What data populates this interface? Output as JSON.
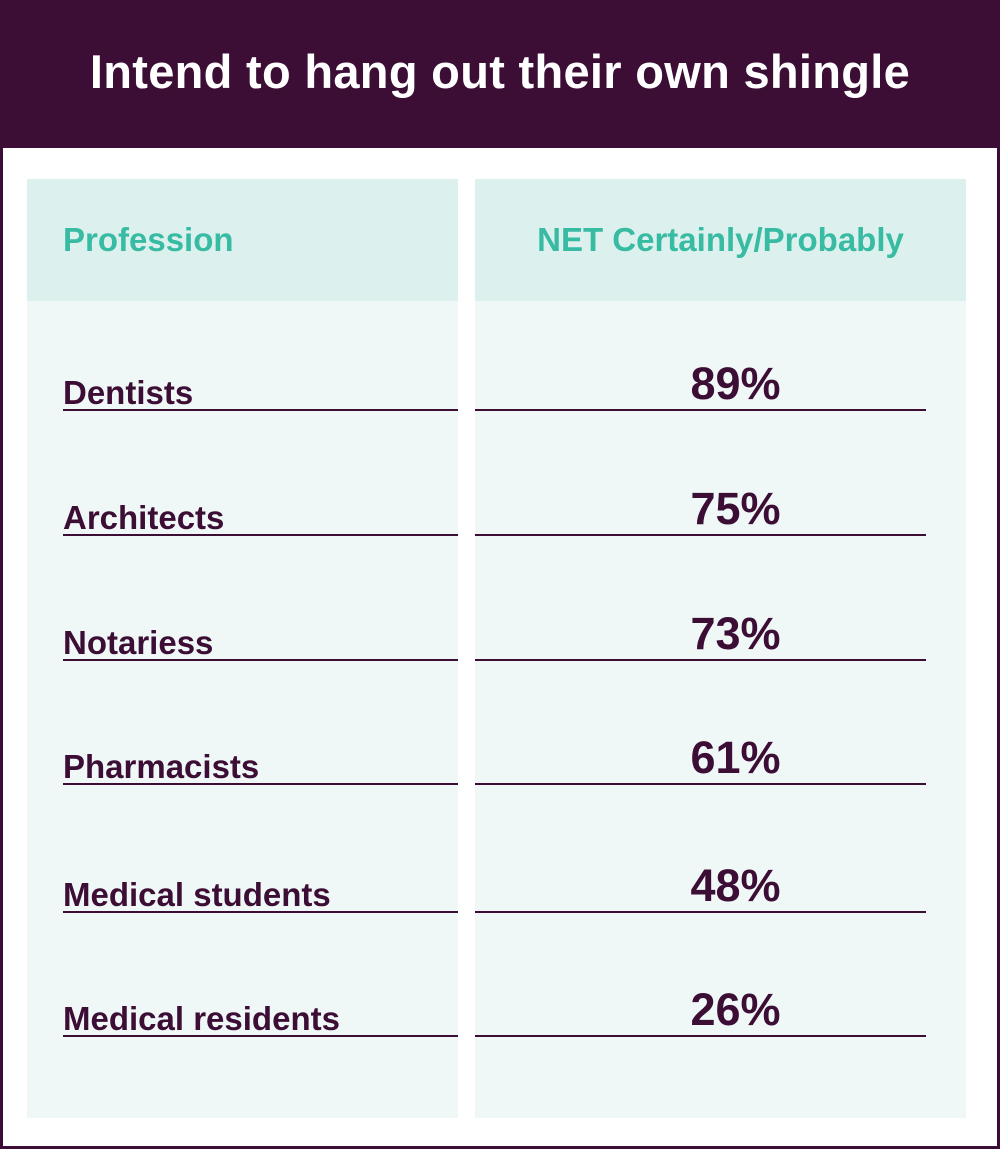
{
  "chart_data": {
    "type": "table",
    "title": "Intend to hang out their own shingle",
    "columns": [
      "Profession",
      "NET Certainly/Probably"
    ],
    "rows": [
      {
        "profession": "Dentists",
        "value": "89%"
      },
      {
        "profession": "Architects",
        "value": "75%"
      },
      {
        "profession": "Notariess",
        "value": "73%"
      },
      {
        "profession": "Pharmacists",
        "value": "61%"
      },
      {
        "profession": "Medical students",
        "value": "48%"
      },
      {
        "profession": "Medical residents",
        "value": "26%"
      }
    ]
  },
  "colors": {
    "title_bar": "#3c0d35",
    "header_text": "#38bba3",
    "header_bg": "#dcf1ed",
    "body_bg": "#eff8f6",
    "row_text": "#3c0d35"
  }
}
